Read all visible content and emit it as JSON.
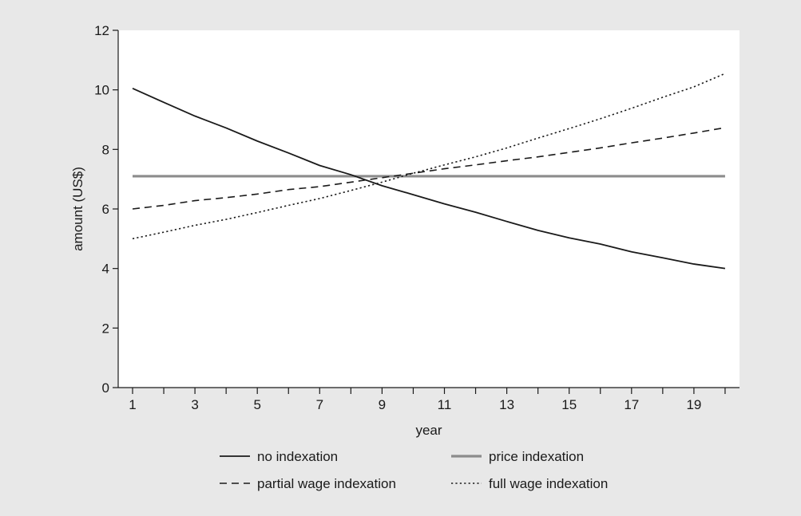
{
  "colors": {
    "background": "#e8e8e8",
    "plot_area": "#ffffff",
    "axis": "#1a1a1a",
    "no_indexation": "#1a1a1a",
    "price_indexation": "#8c8c8c",
    "partial_wage_indexation": "#1a1a1a",
    "full_wage_indexation": "#1a1a1a"
  },
  "chart_data": {
    "type": "line",
    "title": "",
    "xlabel": "year",
    "ylabel": "amount (US$)",
    "xlim": [
      1,
      20
    ],
    "ylim": [
      0,
      12
    ],
    "grid": false,
    "legend_position": "bottom",
    "x_ticks": [
      1,
      3,
      5,
      7,
      9,
      11,
      13,
      15,
      17,
      19
    ],
    "x_minor_ticks": [
      2,
      4,
      6,
      8,
      10,
      12,
      14,
      16,
      18,
      20
    ],
    "y_ticks": [
      0,
      2,
      4,
      6,
      8,
      10,
      12
    ],
    "x": [
      1,
      2,
      3,
      4,
      5,
      6,
      7,
      8,
      9,
      10,
      11,
      12,
      13,
      14,
      15,
      16,
      17,
      18,
      19,
      20
    ],
    "series": [
      {
        "name": "no indexation",
        "style": "solid",
        "values": [
          10.05,
          9.58,
          9.12,
          8.72,
          8.28,
          7.88,
          7.46,
          7.15,
          6.78,
          6.48,
          6.17,
          5.89,
          5.58,
          5.28,
          5.03,
          4.82,
          4.56,
          4.36,
          4.15,
          4.0
        ]
      },
      {
        "name": "price indexation",
        "style": "solid-gray",
        "values": [
          7.1,
          7.1,
          7.1,
          7.1,
          7.1,
          7.1,
          7.1,
          7.1,
          7.1,
          7.1,
          7.1,
          7.1,
          7.1,
          7.1,
          7.1,
          7.1,
          7.1,
          7.1,
          7.1,
          7.1
        ]
      },
      {
        "name": "partial wage indexation",
        "style": "dashed",
        "values": [
          6.0,
          6.12,
          6.28,
          6.38,
          6.5,
          6.65,
          6.75,
          6.9,
          7.05,
          7.2,
          7.35,
          7.48,
          7.62,
          7.75,
          7.9,
          8.05,
          8.22,
          8.38,
          8.55,
          8.73
        ]
      },
      {
        "name": "full wage indexation",
        "style": "dotted",
        "values": [
          5.0,
          5.22,
          5.45,
          5.65,
          5.88,
          6.12,
          6.35,
          6.62,
          6.9,
          7.2,
          7.48,
          7.75,
          8.05,
          8.38,
          8.7,
          9.03,
          9.38,
          9.75,
          10.1,
          10.55
        ]
      }
    ],
    "legend": [
      {
        "label": "no indexation",
        "series": 0
      },
      {
        "label": "price indexation",
        "series": 1
      },
      {
        "label": "partial wage indexation",
        "series": 2
      },
      {
        "label": "full wage indexation",
        "series": 3
      }
    ]
  }
}
